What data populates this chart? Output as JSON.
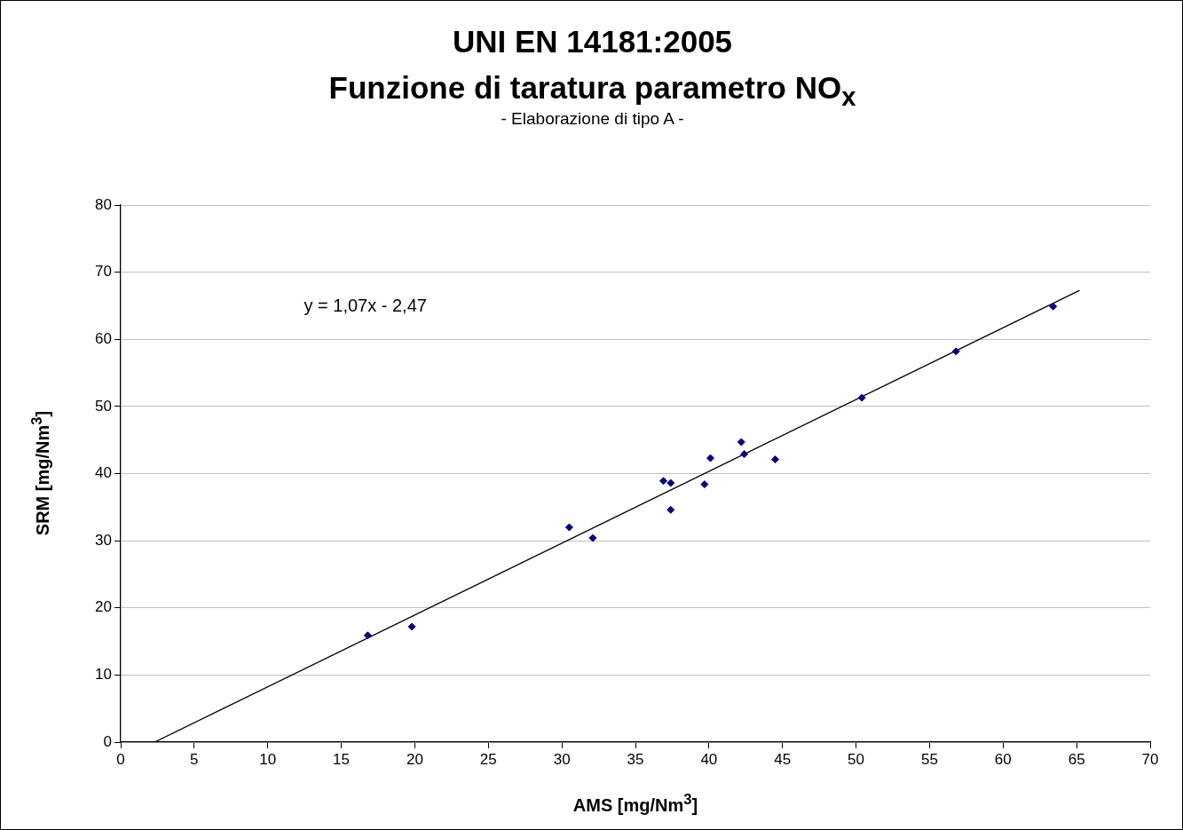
{
  "chart_data": {
    "type": "scatter",
    "title": "UNI EN 14181:2005\nFunzione di taratura parametro NO$_{x}$",
    "subtitle": "- Elaborazione di tipo A -",
    "xlabel": "AMS [mg/Nm$^{3}$]",
    "ylabel": "SRM [mg/Nm$^{3}$]",
    "annotations": [
      "y = 1,07x - 2,47"
    ],
    "series": [
      {
        "color": "#000080",
        "x": [
          16.8,
          19.8,
          30.5,
          32.1,
          36.9,
          37.4,
          37.4,
          39.7,
          40.1,
          42.2,
          42.4,
          44.5,
          50.4,
          56.8,
          63.4
        ],
        "values": [
          15.9,
          17.2,
          32.0,
          30.4,
          38.9,
          38.6,
          34.6,
          38.4,
          42.3,
          44.7,
          42.9,
          42.1,
          51.3,
          58.2,
          64.9
        ]
      },
      {
        "type": "line",
        "marker": "none",
        "color": "#000000",
        "x": [
          2.3,
          65.2
        ],
        "values": [
          0,
          67.3
        ]
      }
    ],
    "xlim": [
      0,
      70
    ],
    "xticks": [
      0,
      5,
      10,
      15,
      20,
      25,
      30,
      35,
      40,
      45,
      50,
      55,
      60,
      65,
      70
    ],
    "ylim": [
      0,
      80
    ],
    "yticks": [
      0,
      10,
      20,
      30,
      40,
      50,
      60,
      70,
      80
    ],
    "grid": "y",
    "legend": false,
    "marker": "diamond",
    "line_style": "solid"
  }
}
